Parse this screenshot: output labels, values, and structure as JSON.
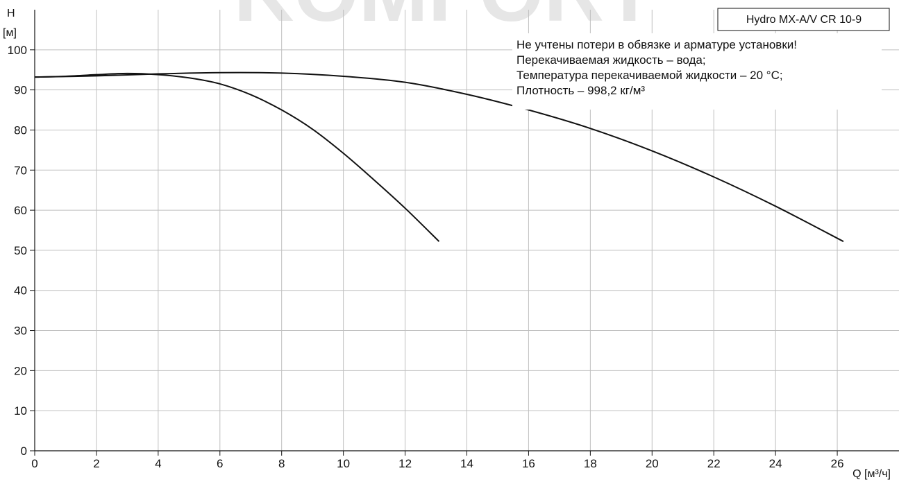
{
  "watermark": {
    "text": "KOMFORT",
    "color": "#e6e6e6"
  },
  "model_label": "Hydro MX-A/V CR 10-9",
  "notes": [
    "Не учтены потери в обвязке и арматуре установки!",
    "Перекачиваемая жидкость – вода;",
    "Температура перекачиваемой жидкости – 20 °C;",
    "Плотность – 998,2 кг/м³"
  ],
  "colors": {
    "curve": "#111111",
    "grid": "#bfbfbf",
    "axis": "#111111"
  },
  "chart_data": {
    "type": "line",
    "title": "",
    "xlabel": "Q [м³/ч]",
    "ylabel_line1": "H",
    "ylabel_line2": "[м]",
    "xlim": [
      0,
      28
    ],
    "ylim": [
      0,
      110
    ],
    "x_ticks": [
      0,
      2,
      4,
      6,
      8,
      10,
      12,
      14,
      16,
      18,
      20,
      22,
      24,
      26
    ],
    "y_ticks": [
      0,
      10,
      20,
      30,
      40,
      50,
      60,
      70,
      80,
      90,
      100
    ],
    "grid": true,
    "series": [
      {
        "x": [
          0,
          1,
          2,
          3,
          4,
          5,
          6,
          7,
          8,
          9,
          10,
          11,
          12,
          13.1
        ],
        "values": [
          93.2,
          93.4,
          93.8,
          94.1,
          93.8,
          93.0,
          91.5,
          88.8,
          85.0,
          80.2,
          74.2,
          67.5,
          60.5,
          52.2
        ]
      },
      {
        "x": [
          0,
          2,
          4,
          6,
          8,
          10,
          12,
          14,
          16,
          18,
          20,
          22,
          24,
          26.2
        ],
        "values": [
          93.2,
          93.5,
          94.0,
          94.3,
          94.2,
          93.4,
          91.9,
          88.9,
          85.0,
          80.4,
          74.8,
          68.3,
          61.0,
          52.2
        ]
      }
    ]
  }
}
